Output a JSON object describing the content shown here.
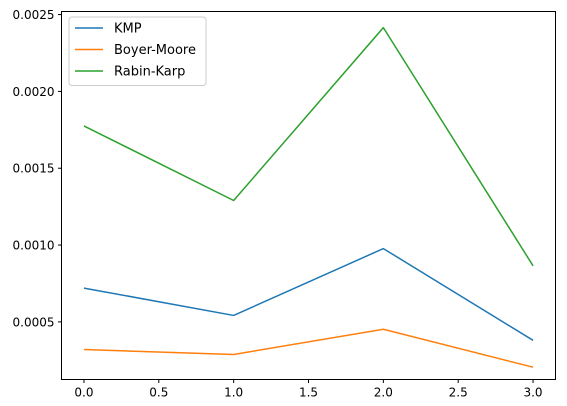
{
  "chart_data": {
    "type": "line",
    "title": "",
    "xlabel": "",
    "ylabel": "",
    "x": [
      0,
      1,
      2,
      3
    ],
    "xlim": [
      -0.15,
      3.15
    ],
    "ylim": [
      0.000125,
      0.00252
    ],
    "xticks": [
      0.0,
      0.5,
      1.0,
      1.5,
      2.0,
      2.5,
      3.0
    ],
    "xtick_labels": [
      "0.0",
      "0.5",
      "1.0",
      "1.5",
      "2.0",
      "2.5",
      "3.0"
    ],
    "yticks": [
      0.0005,
      0.001,
      0.0015,
      0.002,
      0.0025
    ],
    "ytick_labels": [
      "0.0005",
      "0.0010",
      "0.0015",
      "0.0020",
      "0.0025"
    ],
    "grid": false,
    "legend_position": "top-left",
    "series": [
      {
        "name": "KMP",
        "color": "#1f77b4",
        "values": [
          0.00072,
          0.000542,
          0.000977,
          0.00038
        ]
      },
      {
        "name": "Boyer-Moore",
        "color": "#ff7f0e",
        "values": [
          0.00032,
          0.000288,
          0.000452,
          0.000205
        ]
      },
      {
        "name": "Rabin-Karp",
        "color": "#2ca02c",
        "values": [
          0.001775,
          0.00129,
          0.002415,
          0.000865
        ]
      }
    ]
  }
}
